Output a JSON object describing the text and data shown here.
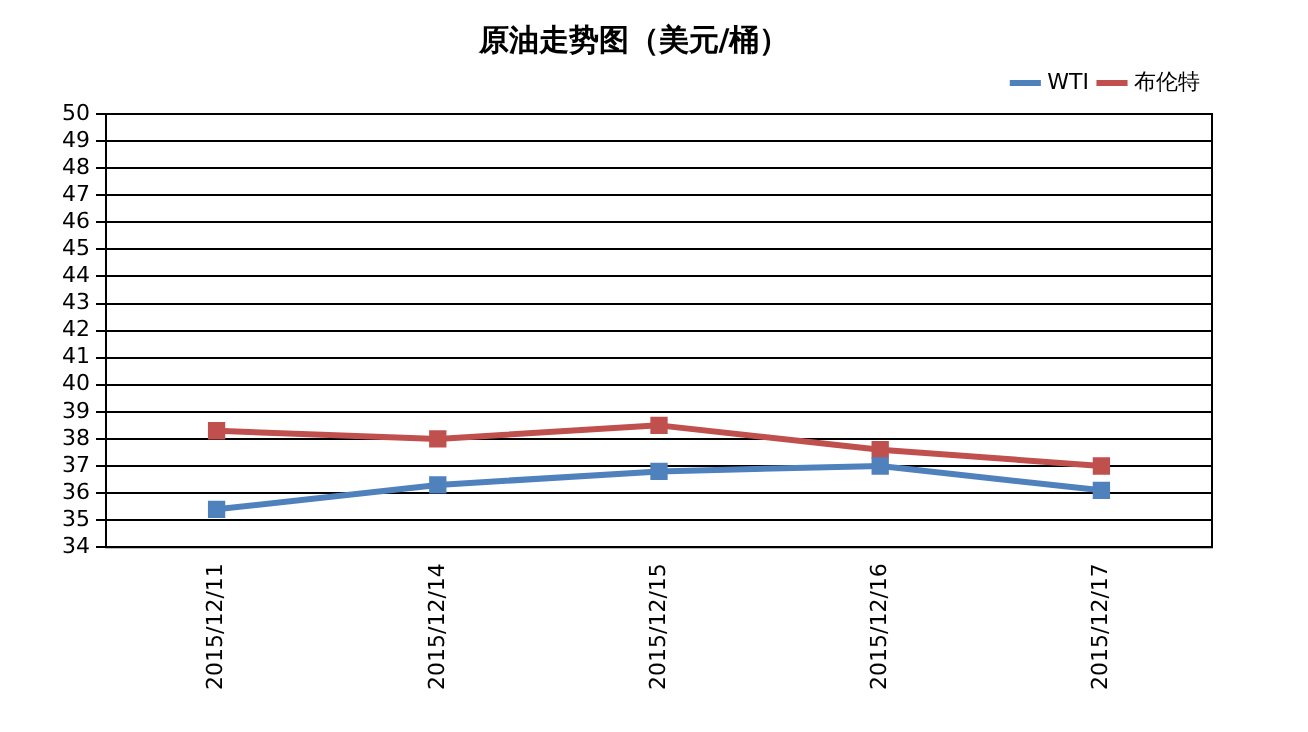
{
  "chart_data": {
    "type": "line",
    "title": "原油走势图（美元/桶）",
    "categories": [
      "2015/12/11",
      "2015/12/14",
      "2015/12/15",
      "2015/12/16",
      "2015/12/17"
    ],
    "series": [
      {
        "name": "WTI",
        "color": "#4f81bd",
        "values": [
          35.4,
          36.3,
          36.8,
          37.0,
          36.1
        ]
      },
      {
        "name": "布伦特",
        "color": "#c0504d",
        "values": [
          38.3,
          38.0,
          38.5,
          37.6,
          37.0
        ]
      }
    ],
    "ylim": [
      34,
      50
    ],
    "yticks": [
      34,
      35,
      36,
      37,
      38,
      39,
      40,
      41,
      42,
      43,
      44,
      45,
      46,
      47,
      48,
      49,
      50
    ],
    "grid": "y",
    "legend": "top right",
    "marker": "square",
    "line_style": "solid"
  }
}
